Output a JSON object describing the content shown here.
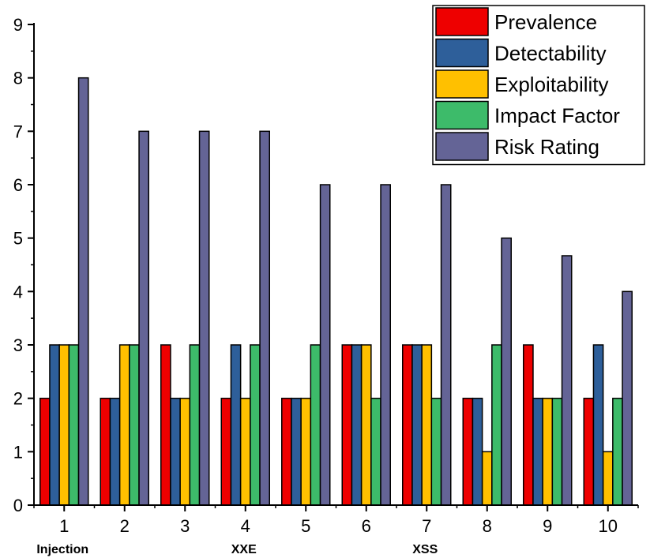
{
  "chart_data": {
    "type": "bar",
    "title": "",
    "xlabel": "",
    "ylabel": "",
    "categories": [
      "1",
      "2",
      "3",
      "4",
      "5",
      "6",
      "7",
      "8",
      "9",
      "10"
    ],
    "category_notes": [
      {
        "category": "1",
        "text": "Injection"
      },
      {
        "category": "4",
        "text": "XXE"
      },
      {
        "category": "7",
        "text": "XSS"
      }
    ],
    "ylim": [
      0,
      9
    ],
    "yticks": [
      0,
      1,
      2,
      3,
      4,
      5,
      6,
      7,
      8,
      9
    ],
    "grid": false,
    "legend_position": "top-right",
    "series": [
      {
        "name": "Prevalence",
        "color": "#ee0000",
        "values": [
          2,
          2,
          3,
          2,
          2,
          3,
          3,
          2,
          3,
          2
        ]
      },
      {
        "name": "Detectability",
        "color": "#2e5f9a",
        "values": [
          3,
          2,
          2,
          3,
          2,
          3,
          3,
          2,
          2,
          3
        ]
      },
      {
        "name": "Exploitability",
        "color": "#ffc000",
        "values": [
          3,
          3,
          2,
          2,
          2,
          3,
          3,
          1,
          2,
          1
        ]
      },
      {
        "name": "Impact Factor",
        "color": "#3dbb6a",
        "values": [
          3,
          3,
          3,
          3,
          3,
          2,
          2,
          3,
          2,
          2
        ]
      },
      {
        "name": "Risk Rating",
        "color": "#646496",
        "values": [
          8,
          7,
          7,
          7,
          6,
          6,
          6,
          5,
          4.67,
          4
        ]
      }
    ]
  }
}
